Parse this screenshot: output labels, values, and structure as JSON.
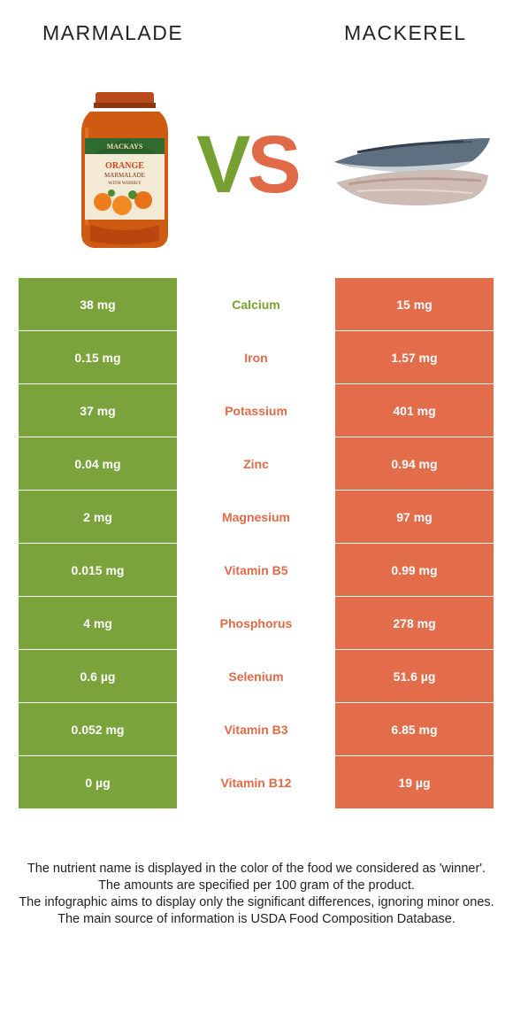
{
  "header": {
    "left_food": "MARMALADE",
    "right_food": "MACKEREL",
    "vs_v": "V",
    "vs_s": "S"
  },
  "jar_label": {
    "brand": "MACKAYS",
    "line1": "ORANGE",
    "line2": "MARMALADE",
    "line3": "WITH WHISKY"
  },
  "colors": {
    "left": "#7aa33b",
    "right": "#e36d4b"
  },
  "rows": [
    {
      "left": "38 mg",
      "nutrient": "Calcium",
      "right": "15 mg",
      "winner": "left"
    },
    {
      "left": "0.15 mg",
      "nutrient": "Iron",
      "right": "1.57 mg",
      "winner": "right"
    },
    {
      "left": "37 mg",
      "nutrient": "Potassium",
      "right": "401 mg",
      "winner": "right"
    },
    {
      "left": "0.04 mg",
      "nutrient": "Zinc",
      "right": "0.94 mg",
      "winner": "right"
    },
    {
      "left": "2 mg",
      "nutrient": "Magnesium",
      "right": "97 mg",
      "winner": "right"
    },
    {
      "left": "0.015 mg",
      "nutrient": "Vitamin B5",
      "right": "0.99 mg",
      "winner": "right"
    },
    {
      "left": "4 mg",
      "nutrient": "Phosphorus",
      "right": "278 mg",
      "winner": "right"
    },
    {
      "left": "0.6 µg",
      "nutrient": "Selenium",
      "right": "51.6 µg",
      "winner": "right"
    },
    {
      "left": "0.052 mg",
      "nutrient": "Vitamin B3",
      "right": "6.85 mg",
      "winner": "right"
    },
    {
      "left": "0 µg",
      "nutrient": "Vitamin B12",
      "right": "19 µg",
      "winner": "right"
    }
  ],
  "notes": [
    "The nutrient name is displayed in the color of the food we considered as 'winner'.",
    "The amounts are specified per 100 gram of the product.",
    "The infographic aims to display only the significant differences, ignoring minor ones.",
    "The main source of information is USDA Food Composition Database."
  ]
}
